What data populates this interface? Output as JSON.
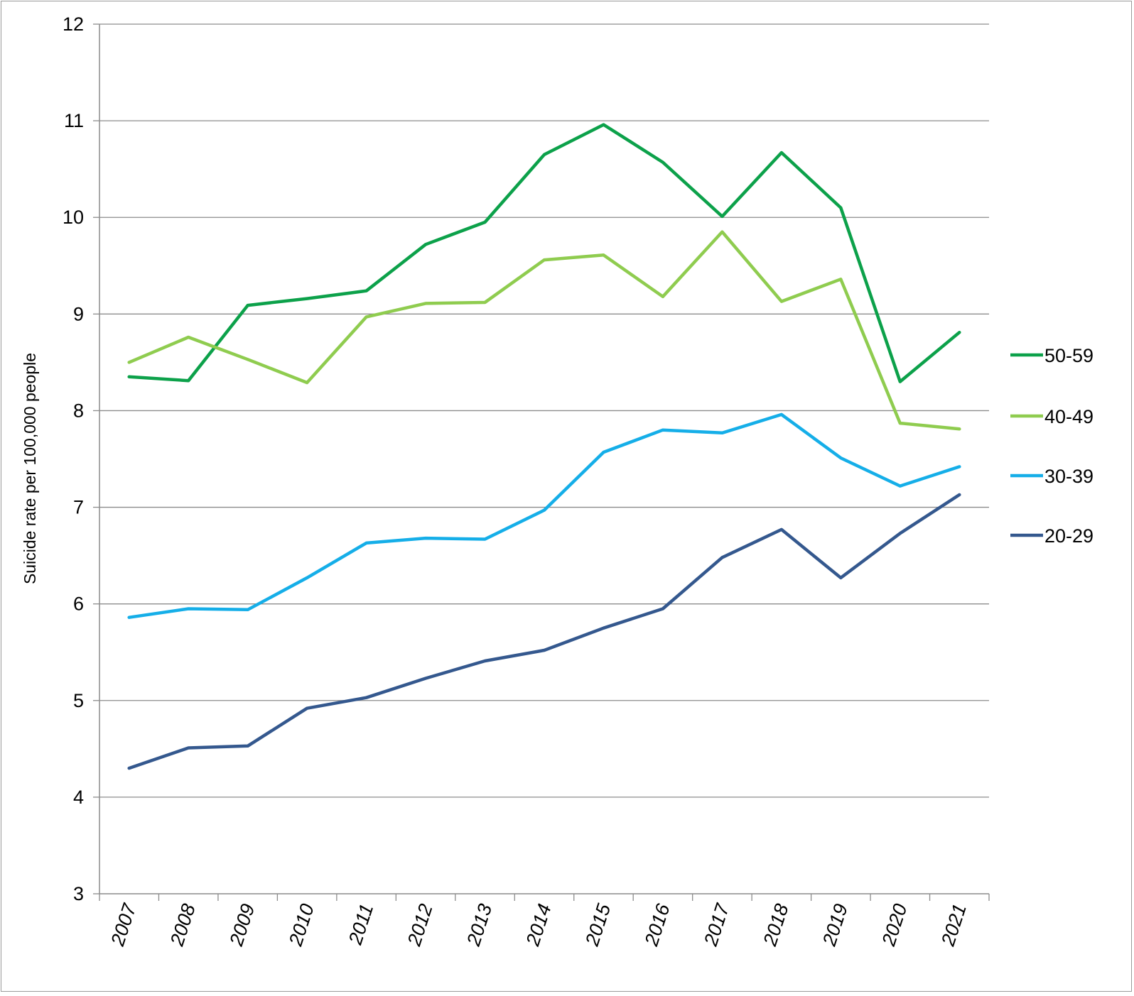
{
  "chart_data": {
    "type": "line",
    "title": "",
    "xlabel": "",
    "ylabel": "Suicide rate per 100,000 people",
    "ylim": [
      3,
      12
    ],
    "yticks": [
      3,
      4,
      5,
      6,
      7,
      8,
      9,
      10,
      11,
      12
    ],
    "grid": true,
    "legend_position": "right",
    "categories": [
      "2007",
      "2008",
      "2009",
      "2010",
      "2011",
      "2012",
      "2013",
      "2014",
      "2015",
      "2016",
      "2017",
      "2018",
      "2019",
      "2020",
      "2021"
    ],
    "series": [
      {
        "name": "50-59",
        "color": "#0ca14a",
        "values": [
          8.35,
          8.31,
          9.09,
          9.16,
          9.24,
          9.72,
          9.95,
          10.65,
          10.96,
          10.57,
          10.01,
          10.67,
          10.1,
          8.3,
          8.81
        ]
      },
      {
        "name": "40-49",
        "color": "#8fcc4f",
        "values": [
          8.5,
          8.76,
          8.53,
          8.29,
          8.97,
          9.11,
          9.12,
          9.56,
          9.61,
          9.18,
          9.85,
          9.13,
          9.36,
          7.87,
          7.81
        ]
      },
      {
        "name": "30-39",
        "color": "#15aee8",
        "values": [
          5.86,
          5.95,
          5.94,
          6.27,
          6.63,
          6.68,
          6.67,
          6.97,
          7.57,
          7.8,
          7.77,
          7.96,
          7.51,
          7.22,
          7.42
        ]
      },
      {
        "name": "20-29",
        "color": "#34588e",
        "values": [
          4.3,
          4.51,
          4.53,
          4.92,
          5.03,
          5.23,
          5.41,
          5.52,
          5.75,
          5.95,
          6.48,
          6.77,
          6.27,
          6.73,
          7.13
        ]
      }
    ]
  }
}
